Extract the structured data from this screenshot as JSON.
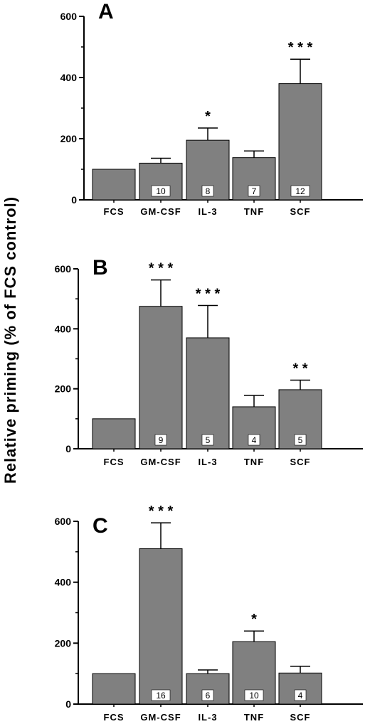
{
  "ylabel": "Relative priming (% of FCS control)",
  "colors": {
    "bar": "#808080",
    "axis": "#000000",
    "nbox": "#ffffff"
  },
  "chart_data": [
    {
      "type": "bar",
      "panel": "A",
      "categories": [
        "FCS",
        "GM-CSF",
        "IL-3",
        "TNF",
        "SCF"
      ],
      "values": [
        100,
        120,
        195,
        138,
        380
      ],
      "errors": [
        0,
        16,
        40,
        22,
        80
      ],
      "n": [
        "",
        "10",
        "8",
        "7",
        "12"
      ],
      "significance": [
        "",
        "",
        "*",
        "",
        "* * *"
      ],
      "ylim": [
        0,
        600
      ],
      "yticks": [
        0,
        200,
        400,
        600
      ],
      "ytick_labels": [
        "0",
        "200",
        "400",
        "600"
      ]
    },
    {
      "type": "bar",
      "panel": "B",
      "categories": [
        "FCS",
        "GM-CSF",
        "IL-3",
        "TNF",
        "SCF"
      ],
      "values": [
        100,
        475,
        370,
        140,
        197
      ],
      "errors": [
        0,
        88,
        108,
        38,
        32
      ],
      "n": [
        "",
        "9",
        "5",
        "4",
        "5"
      ],
      "significance": [
        "",
        "* * *",
        "* * *",
        "",
        "* *"
      ],
      "ylim": [
        0,
        600
      ],
      "yticks": [
        0,
        200,
        400,
        600
      ],
      "ytick_labels": [
        "0",
        "200",
        "400",
        "600"
      ]
    },
    {
      "type": "bar",
      "panel": "C",
      "categories": [
        "FCS",
        "GM-CSF",
        "IL-3",
        "TNF",
        "SCF"
      ],
      "values": [
        100,
        510,
        100,
        205,
        102
      ],
      "errors": [
        0,
        85,
        12,
        35,
        22
      ],
      "n": [
        "",
        "16",
        "6",
        "10",
        "4"
      ],
      "significance": [
        "",
        "* * *",
        "",
        "*",
        ""
      ],
      "ylim": [
        0,
        600
      ],
      "yticks": [
        0,
        200,
        400,
        600
      ],
      "ytick_labels": [
        "0",
        "200",
        "400",
        "600"
      ]
    }
  ]
}
